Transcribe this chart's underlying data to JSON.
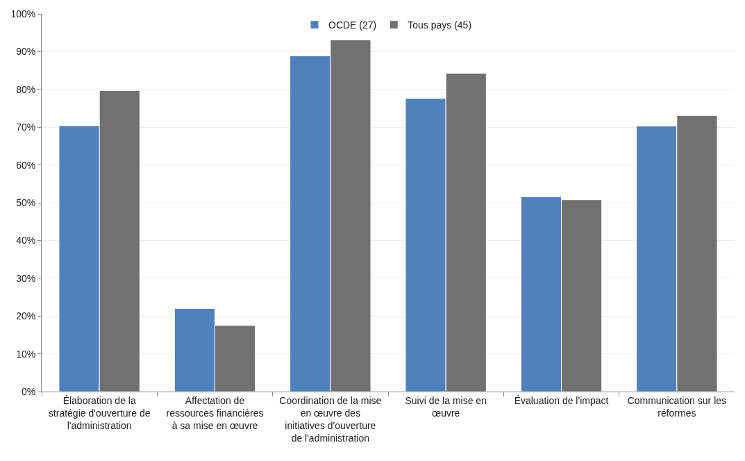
{
  "chart_data": {
    "type": "bar",
    "categories": [
      "Élaboration de la\nstratégie d'ouverture de\nl'administration",
      "Affectation de\nressources financières\nà sa mise en œuvre",
      "Coordination de la mise\nen œuvre des\ninitiatives d'ouverture\nde l'administration",
      "Suivi de la mise en\nœuvre",
      "Évaluation de l'impact",
      "Communication sur les\nréformes"
    ],
    "series": [
      {
        "name": "OCDE (27)",
        "color": "#4f81bd",
        "values": [
          70.4,
          22.0,
          88.9,
          77.6,
          51.6,
          70.3
        ]
      },
      {
        "name": "Tous pays (45)",
        "color": "#717171",
        "values": [
          79.7,
          17.5,
          93.1,
          84.3,
          50.8,
          73.1
        ]
      }
    ],
    "ylim": [
      0,
      100
    ],
    "yticks": [
      {
        "value": 0,
        "label": "0%"
      },
      {
        "value": 10,
        "label": "10%"
      },
      {
        "value": 20,
        "label": "20%"
      },
      {
        "value": 30,
        "label": "30%"
      },
      {
        "value": 40,
        "label": "40%"
      },
      {
        "value": 50,
        "label": "50%"
      },
      {
        "value": 60,
        "label": "60%"
      },
      {
        "value": 70,
        "label": "70%"
      },
      {
        "value": 80,
        "label": "80%"
      },
      {
        "value": 90,
        "label": "90%"
      },
      {
        "value": 100,
        "label": "100%"
      }
    ],
    "grid": "y",
    "legend": "top"
  }
}
